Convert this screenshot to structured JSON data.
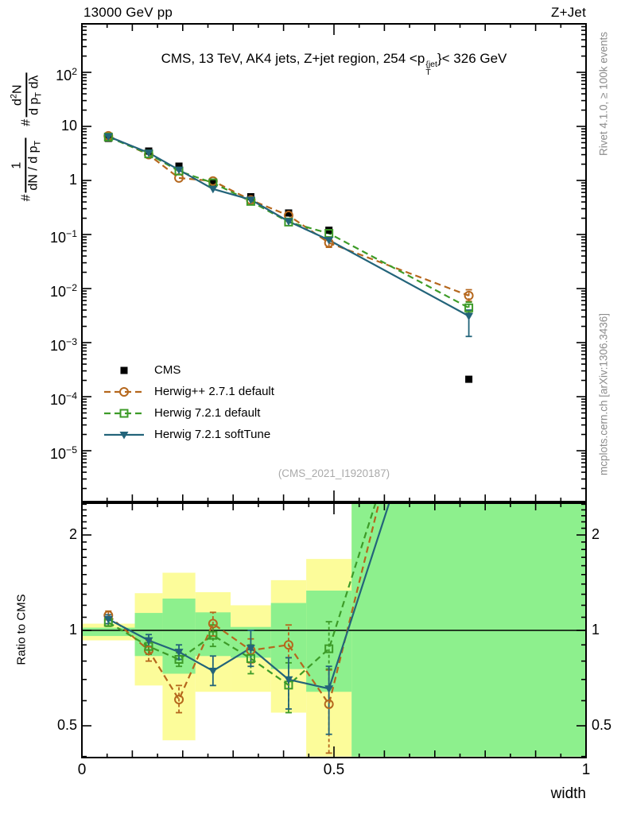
{
  "header": {
    "left": "13000 GeV pp",
    "right": "Z+Jet"
  },
  "main_title_parts": [
    {
      "t": "CMS, 13 TeV, AK4 jets, Z+jet region, 254 <p"
    },
    {
      "stack": {
        "sup": "{jet",
        "sub": "T"
      }
    },
    {
      "t": "}< 326 GeV"
    }
  ],
  "watermark": "(CMS_2021_I1920187)",
  "side_notes": {
    "rivet": "Rivet 4.1.0, ≥ 100k events",
    "mcplots": "mcplots.cern.ch [arXiv:1306.3436]"
  },
  "axis_labels": {
    "ratio_y": "Ratio to CMS",
    "x": "width"
  },
  "ylabel_main": {
    "hash1": "#",
    "frac1": {
      "num": [
        {
          "t": "1"
        }
      ],
      "den": [
        {
          "t": "dN / d p"
        },
        {
          "sub": "T"
        }
      ]
    },
    "hash2": "#",
    "frac2": {
      "num": [
        {
          "t": "d"
        },
        {
          "sup": "2"
        },
        {
          "t": "N"
        }
      ],
      "den": [
        {
          "t": "d p"
        },
        {
          "sub": "T"
        },
        {
          "t": " dλ"
        }
      ]
    }
  },
  "legend": [
    {
      "label": "CMS",
      "marker": "filled-square",
      "color": "#000000",
      "line": "none"
    },
    {
      "label": "Herwig++ 2.7.1 default",
      "marker": "open-circle",
      "color": "#b5671d",
      "line": "dashed"
    },
    {
      "label": "Herwig 7.2.1 default",
      "marker": "open-square",
      "color": "#3d9b28",
      "line": "dashed"
    },
    {
      "label": "Herwig 7.2.1 softTune",
      "marker": "filled-triangle-down",
      "color": "#23647a",
      "line": "solid"
    }
  ],
  "chart_data": {
    "type": "line",
    "title": "CMS, 13 TeV, AK4 jets, Z+jet region, 254 < pT{jet} < 326 GeV",
    "xlabel": "width",
    "x_range": [
      0,
      1
    ],
    "x_ticks": [
      {
        "v": 0,
        "label": "0"
      },
      {
        "v": 0.5,
        "label": "0.5"
      },
      {
        "v": 1,
        "label": "1"
      }
    ],
    "x_bin_edges": [
      0,
      0.105,
      0.16,
      0.225,
      0.295,
      0.375,
      0.445,
      0.535,
      1.0
    ],
    "x_centers": [
      0.0525,
      0.1325,
      0.1925,
      0.26,
      0.335,
      0.41,
      0.49,
      0.7675
    ],
    "main_panel": {
      "y_scale": "log",
      "y_range": [
        1.2e-06,
        800
      ],
      "y_ticks": [
        {
          "v": 100,
          "base": "10",
          "exp": "2"
        },
        {
          "v": 10,
          "base": "10",
          "exp": ""
        },
        {
          "v": 1,
          "base": "1",
          "exp": ""
        },
        {
          "v": 0.1,
          "base": "10",
          "exp": "−1"
        },
        {
          "v": 0.01,
          "base": "10",
          "exp": "−2"
        },
        {
          "v": 0.001,
          "base": "10",
          "exp": "−3"
        },
        {
          "v": 0.0001,
          "base": "10",
          "exp": "−4"
        },
        {
          "v": 1e-05,
          "base": "10",
          "exp": "−5"
        }
      ],
      "series": [
        {
          "name": "CMS",
          "values": [
            6.0,
            3.5,
            1.84,
            0.93,
            0.5,
            0.25,
            0.12,
            0.00021
          ]
        },
        {
          "name": "Herwig++ 2.7.1 default",
          "values": [
            6.7,
            3.0,
            1.11,
            0.975,
            0.435,
            0.225,
            0.07,
            0.0074
          ]
        },
        {
          "name": "Herwig 7.2.1 default",
          "values": [
            6.35,
            3.1,
            1.49,
            0.9,
            0.41,
            0.17,
            0.105,
            0.0044
          ]
        },
        {
          "name": "Herwig 7.2.1 softTune",
          "values": [
            6.5,
            3.25,
            1.57,
            0.695,
            0.44,
            0.175,
            0.079,
            0.0031
          ]
        }
      ],
      "error_bars": [
        {
          "series": "Herwig++ 2.7.1 default",
          "x": 0.49,
          "lo": 0.058,
          "hi": 0.082
        },
        {
          "series": "Herwig++ 2.7.1 default",
          "x": 0.7675,
          "lo": 0.0058,
          "hi": 0.0095
        },
        {
          "series": "Herwig 7.2.1 default",
          "x": 0.7675,
          "lo": 0.0035,
          "hi": 0.0056
        },
        {
          "series": "Herwig 7.2.1 softTune",
          "x": 0.7675,
          "lo": 0.0013,
          "hi": 0.004
        }
      ]
    },
    "ratio_panel": {
      "ylabel": "Ratio to CMS",
      "y_scale": "log",
      "y_range": [
        0.4,
        2.52
      ],
      "reference_line": 1.0,
      "y_ticks": [
        {
          "v": 2,
          "label": "2"
        },
        {
          "v": 1,
          "label": "1"
        },
        {
          "v": 0.5,
          "label": "0.5"
        }
      ],
      "bands": {
        "total_color": "#fcfc9a",
        "stat_color": "#8df08d",
        "bins": [
          {
            "x_lo": 0.0,
            "x_hi": 0.105,
            "total": [
              0.93,
              1.05
            ],
            "stat": [
              0.96,
              1.02
            ]
          },
          {
            "x_lo": 0.105,
            "x_hi": 0.16,
            "total": [
              0.67,
              1.31
            ],
            "stat": [
              0.83,
              1.135
            ]
          },
          {
            "x_lo": 0.16,
            "x_hi": 0.225,
            "total": [
              0.45,
              1.52
            ],
            "stat": [
              0.73,
              1.26
            ]
          },
          {
            "x_lo": 0.225,
            "x_hi": 0.295,
            "total": [
              0.64,
              1.32
            ],
            "stat": [
              0.83,
              1.14
            ]
          },
          {
            "x_lo": 0.295,
            "x_hi": 0.375,
            "total": [
              0.64,
              1.2
            ],
            "stat": [
              0.82,
              1.025
            ]
          },
          {
            "x_lo": 0.375,
            "x_hi": 0.445,
            "total": [
              0.55,
              1.44
            ],
            "stat": [
              0.755,
              1.22
            ]
          },
          {
            "x_lo": 0.445,
            "x_hi": 0.535,
            "total": [
              0.4,
              1.68
            ],
            "stat": [
              0.64,
              1.335
            ]
          },
          {
            "x_lo": 0.535,
            "x_hi": 1.0,
            "total": [
              0.4,
              2.52
            ],
            "stat": [
              0.4,
              2.52
            ]
          }
        ]
      },
      "series": [
        {
          "name": "Herwig++ 2.7.1 default",
          "ratio": [
            1.115,
            0.865,
            0.605,
            1.05,
            0.865,
            0.9,
            0.585,
            35
          ],
          "err_lo": [
            1.08,
            0.8,
            0.55,
            0.96,
            0.79,
            0.82,
            0.41,
            null
          ],
          "err_hi": [
            1.15,
            0.93,
            0.67,
            1.14,
            0.94,
            1.04,
            0.75,
            null
          ]
        },
        {
          "name": "Herwig 7.2.1 default",
          "ratio": [
            1.06,
            0.89,
            0.81,
            0.965,
            0.815,
            0.672,
            0.875,
            21
          ],
          "err_lo": [
            1.03,
            0.84,
            0.77,
            0.89,
            0.73,
            0.55,
            0.755,
            null
          ],
          "err_hi": [
            1.09,
            0.94,
            0.85,
            1.04,
            0.9,
            0.79,
            1.065,
            null
          ]
        },
        {
          "name": "Herwig 7.2.1 softTune",
          "ratio": [
            1.085,
            0.93,
            0.855,
            0.745,
            0.88,
            0.7,
            0.655,
            15
          ],
          "err_lo": [
            1.05,
            0.89,
            0.81,
            0.67,
            0.77,
            0.565,
            0.47,
            null
          ],
          "err_hi": [
            1.12,
            0.97,
            0.9,
            0.83,
            1.0,
            0.82,
            0.77,
            null
          ]
        }
      ]
    }
  }
}
